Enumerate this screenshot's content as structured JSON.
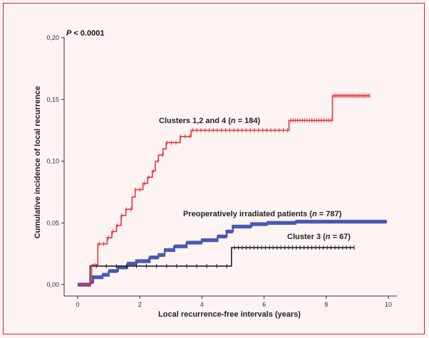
{
  "chart_data": {
    "type": "line",
    "title": "",
    "xlabel": "Local recurrence-free intervals (years)",
    "ylabel": "Cumulative incidence of local recurrence",
    "xlim": [
      0,
      10
    ],
    "ylim": [
      0,
      0.2
    ],
    "x_ticks": [
      0,
      2,
      4,
      6,
      8,
      10
    ],
    "x_tick_labels": [
      "0",
      "2",
      "4",
      "6",
      "8",
      "10"
    ],
    "y_ticks": [
      0,
      0.05,
      0.1,
      0.15,
      0.2
    ],
    "y_tick_labels": [
      "0,00",
      "0,05",
      "0,10",
      "0,15",
      "0,20"
    ],
    "grid": false,
    "p_value": {
      "label": "P",
      "text": " < 0.0001"
    },
    "series": [
      {
        "name": "Clusters 1,2 and 4 (n = 184)",
        "label_prefix": "Clusters 1,2 and 4 (",
        "label_n": "n",
        "label_suffix": " = 184)",
        "color": "#e8323c",
        "steps": [
          [
            0,
            0
          ],
          [
            0.4,
            0.003
          ],
          [
            0.45,
            0.016
          ],
          [
            0.65,
            0.033
          ],
          [
            0.95,
            0.038
          ],
          [
            1.1,
            0.043
          ],
          [
            1.25,
            0.048
          ],
          [
            1.4,
            0.056
          ],
          [
            1.55,
            0.061
          ],
          [
            1.75,
            0.071
          ],
          [
            1.85,
            0.077
          ],
          [
            2.1,
            0.082
          ],
          [
            2.25,
            0.087
          ],
          [
            2.4,
            0.092
          ],
          [
            2.5,
            0.1
          ],
          [
            2.6,
            0.105
          ],
          [
            2.75,
            0.11
          ],
          [
            2.85,
            0.115
          ],
          [
            3.3,
            0.12
          ],
          [
            3.65,
            0.125
          ],
          [
            6.8,
            0.133
          ],
          [
            8.2,
            0.153
          ],
          [
            9.4,
            0.153
          ]
        ],
        "censor_ranges": [
          [
            0.1,
            0.35,
            3
          ],
          [
            0.55,
            3.6,
            22
          ],
          [
            3.7,
            6.75,
            24
          ],
          [
            6.85,
            8.15,
            18
          ],
          [
            8.25,
            9.4,
            22
          ]
        ]
      },
      {
        "name": "Preoperatively irradiated patients (n = 787)",
        "label_prefix": "Preoperatively irradiated patients (",
        "label_n": "n",
        "label_suffix": " = 787)",
        "color": "#4a58b0",
        "steps": [
          [
            0,
            0
          ],
          [
            0.4,
            0.002
          ],
          [
            0.5,
            0.006
          ],
          [
            0.8,
            0.008
          ],
          [
            1.0,
            0.011
          ],
          [
            1.3,
            0.014
          ],
          [
            1.6,
            0.017
          ],
          [
            1.9,
            0.019
          ],
          [
            2.3,
            0.022
          ],
          [
            2.6,
            0.024
          ],
          [
            2.8,
            0.028
          ],
          [
            3.1,
            0.031
          ],
          [
            3.5,
            0.034
          ],
          [
            4.0,
            0.036
          ],
          [
            4.5,
            0.039
          ],
          [
            4.8,
            0.043
          ],
          [
            5.0,
            0.047
          ],
          [
            5.6,
            0.049
          ],
          [
            6.1,
            0.05
          ],
          [
            7.0,
            0.051
          ],
          [
            9.9,
            0.051
          ]
        ],
        "censor_ranges": [
          [
            0.05,
            9.9,
            150
          ]
        ]
      },
      {
        "name": "Cluster 3 (n = 67)",
        "label_prefix": "Cluster 3 (",
        "label_n": "n",
        "label_suffix": " = 67)",
        "color": "#222222",
        "steps": [
          [
            0,
            0
          ],
          [
            0.4,
            0.015
          ],
          [
            4.95,
            0.03
          ],
          [
            8.9,
            0.03
          ]
        ],
        "censor_ranges": [
          [
            0.6,
            4.8,
            14
          ],
          [
            5.05,
            8.9,
            32
          ]
        ]
      }
    ]
  }
}
